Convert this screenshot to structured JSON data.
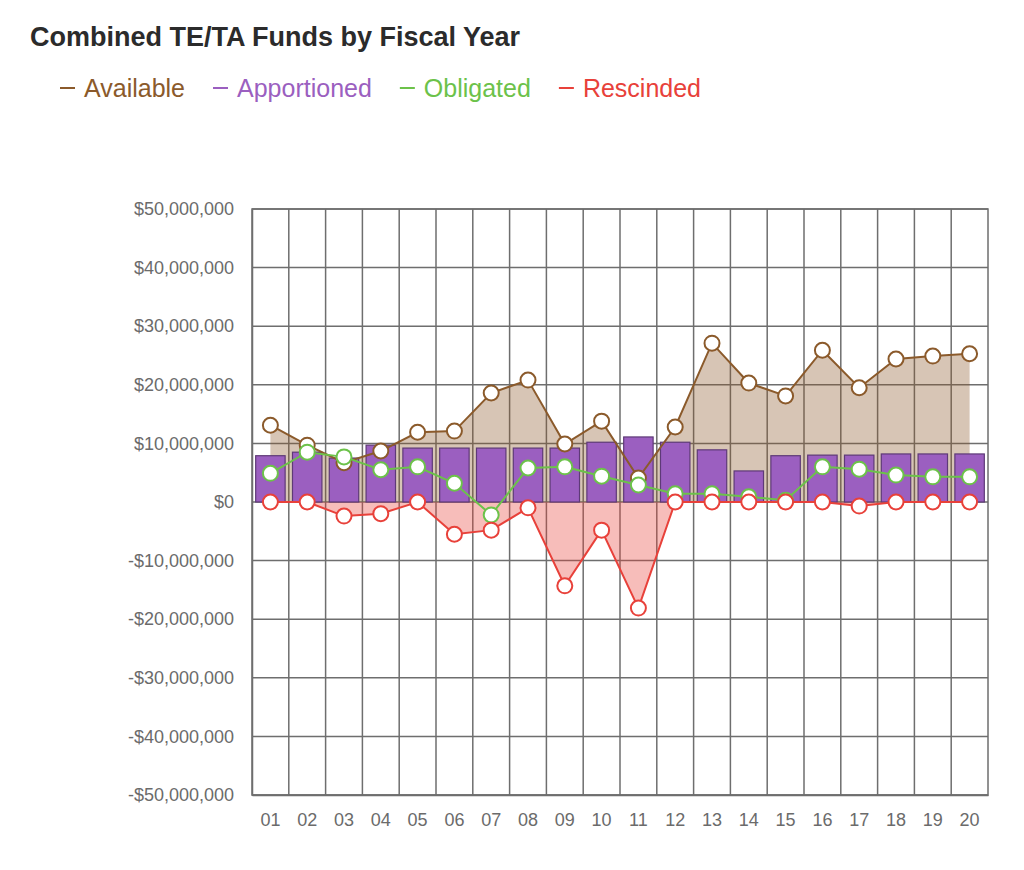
{
  "chart_data": {
    "type": "combo",
    "title": "Combined TE/TA Funds by Fiscal Year",
    "categories": [
      "01",
      "02",
      "03",
      "04",
      "05",
      "06",
      "07",
      "08",
      "09",
      "10",
      "11",
      "12",
      "13",
      "14",
      "15",
      "16",
      "17",
      "18",
      "19",
      "20"
    ],
    "series": [
      {
        "name": "Available",
        "type": "area",
        "color": "#8b5a2b",
        "marker": "circle",
        "values": [
          13100000,
          9700000,
          6700000,
          8700000,
          11900000,
          12100000,
          18600000,
          20800000,
          9900000,
          13800000,
          4100000,
          12800000,
          27100000,
          20300000,
          18100000,
          25900000,
          19500000,
          24400000,
          24900000,
          25300000
        ]
      },
      {
        "name": "Apportioned",
        "type": "bar",
        "color": "#9b5fc0",
        "values": [
          7900000,
          8500000,
          7500000,
          9700000,
          9200000,
          9200000,
          9200000,
          9200000,
          9200000,
          10200000,
          11100000,
          10200000,
          8900000,
          5300000,
          7900000,
          8000000,
          8000000,
          8200000,
          8200000,
          8200000
        ]
      },
      {
        "name": "Obligated",
        "type": "line",
        "color": "#6cc24a",
        "marker": "circle",
        "values": [
          4900000,
          8500000,
          7700000,
          5500000,
          6000000,
          3200000,
          -2200000,
          5800000,
          6000000,
          4400000,
          2900000,
          1400000,
          1400000,
          900000,
          300000,
          6000000,
          5600000,
          4600000,
          4300000,
          4300000
        ]
      },
      {
        "name": "Rescinded",
        "type": "area",
        "color": "#e8413a",
        "marker": "circle",
        "values": [
          0,
          0,
          -2400000,
          -2000000,
          0,
          -5500000,
          -4800000,
          -1000000,
          -14300000,
          -4800000,
          -18100000,
          0,
          0,
          0,
          0,
          0,
          -700000,
          0,
          0,
          0
        ]
      }
    ],
    "ylim": [
      -50000000,
      50000000
    ],
    "yticks": [
      {
        "value": 50000000,
        "label": "$50,000,000"
      },
      {
        "value": 40000000,
        "label": "$40,000,000"
      },
      {
        "value": 30000000,
        "label": "$30,000,000"
      },
      {
        "value": 20000000,
        "label": "$20,000,000"
      },
      {
        "value": 10000000,
        "label": "$10,000,000"
      },
      {
        "value": 0,
        "label": "$0"
      },
      {
        "value": -10000000,
        "label": "-$10,000,000"
      },
      {
        "value": -20000000,
        "label": "-$20,000,000"
      },
      {
        "value": -30000000,
        "label": "-$30,000,000"
      },
      {
        "value": -40000000,
        "label": "-$40,000,000"
      },
      {
        "value": -50000000,
        "label": "-$50,000,000"
      }
    ],
    "grid": true,
    "legend": "top-left"
  }
}
